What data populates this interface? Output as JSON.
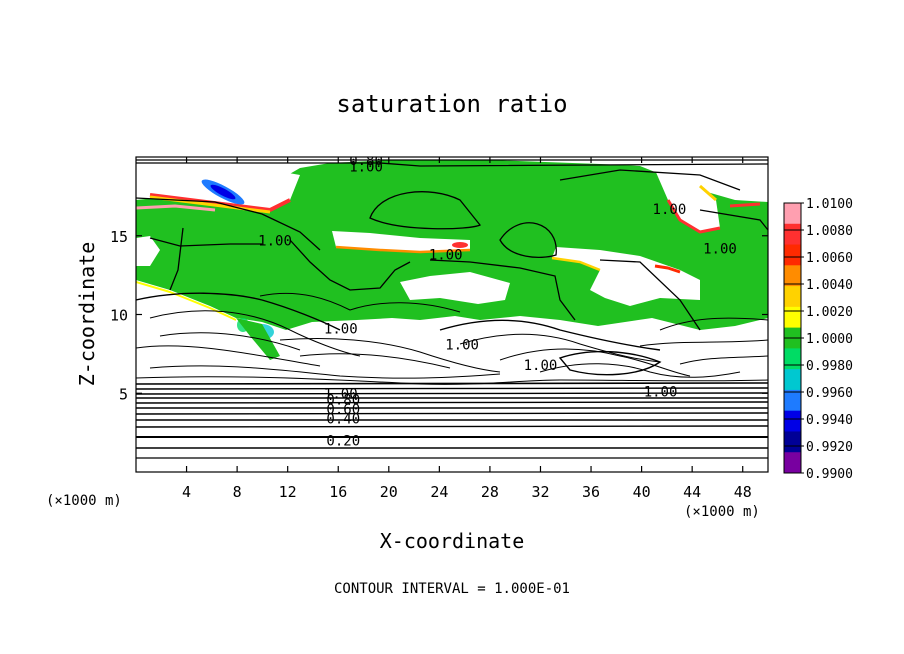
{
  "chart_data": {
    "type": "heatmap",
    "title": "saturation ratio",
    "xlabel": "X-coordinate",
    "ylabel": "Z-coordinate",
    "x_unit": "(×1000 m)",
    "y_unit": "(×1000 m)",
    "xlim": [
      0,
      50
    ],
    "ylim": [
      0,
      20
    ],
    "x_ticks": [
      4,
      8,
      12,
      16,
      20,
      24,
      28,
      32,
      36,
      40,
      44,
      48
    ],
    "y_ticks": [
      5,
      10,
      15
    ],
    "colorbar": {
      "levels": [
        "1.0100",
        "1.0080",
        "1.0060",
        "1.0040",
        "1.0020",
        "1.0000",
        "0.9980",
        "0.9960",
        "0.9940",
        "0.9920",
        "0.9900"
      ],
      "colors": [
        "#ff9fb0",
        "#ff3030",
        "#ff2a00",
        "#ff8c00",
        "#ffd200",
        "#ffff00",
        "#20c020",
        "#00dc64",
        "#00c8d0",
        "#1e7bff",
        "#0000e6",
        "#000096",
        "#7800a0"
      ]
    },
    "contour_labels": [
      {
        "text": "0.80",
        "x": 18.2,
        "z": 19.8
      },
      {
        "text": "1.00",
        "x": 18.2,
        "z": 19.4
      },
      {
        "text": "1.00",
        "x": 42.2,
        "z": 16.7
      },
      {
        "text": "1.00",
        "x": 11.0,
        "z": 14.7
      },
      {
        "text": "1.00",
        "x": 24.5,
        "z": 13.8
      },
      {
        "text": "1.00",
        "x": 46.2,
        "z": 14.2
      },
      {
        "text": "1.00",
        "x": 16.2,
        "z": 9.1
      },
      {
        "text": "1.00",
        "x": 25.8,
        "z": 8.1
      },
      {
        "text": "1.00",
        "x": 32.0,
        "z": 6.8
      },
      {
        "text": "1.00",
        "x": 41.5,
        "z": 5.1
      },
      {
        "text": "1.00",
        "x": 16.2,
        "z": 5.0
      },
      {
        "text": "0.80",
        "x": 16.4,
        "z": 4.6
      },
      {
        "text": "0.60",
        "x": 16.4,
        "z": 4.0
      },
      {
        "text": "0.40",
        "x": 16.4,
        "z": 3.4
      },
      {
        "text": "0.20",
        "x": 16.4,
        "z": 2.0
      }
    ],
    "footer": "CONTOUR INTERVAL = 1.000E-01"
  }
}
